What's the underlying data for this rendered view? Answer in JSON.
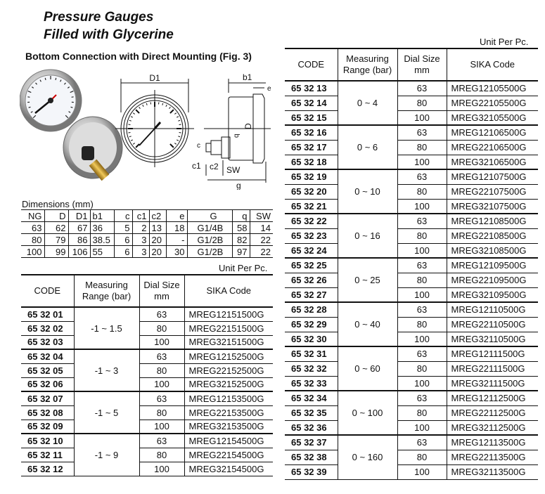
{
  "title_line1": "Pressure Gauges",
  "title_line2": "Filled with Glycerine",
  "subtitle": "Bottom Connection with Direct Mounting (Fig. 3)",
  "drawing_labels": {
    "D1": "D1",
    "b1": "b1",
    "e": "e",
    "D": "D",
    "c": "c",
    "c1": "c1",
    "c2": "c2",
    "SW": "SW",
    "g": "g",
    "q": "q"
  },
  "dimensions": {
    "label": "Dimensions (mm)",
    "headers": [
      "NG",
      "D",
      "D1",
      "b1",
      "c",
      "c1",
      "c2",
      "e",
      "G",
      "q",
      "SW"
    ],
    "rows": [
      [
        "63",
        "62",
        "67",
        "36",
        "5",
        "2",
        "13",
        "18",
        "G1/4B",
        "58",
        "14"
      ],
      [
        "80",
        "79",
        "86",
        "38.5",
        "6",
        "3",
        "20",
        "-",
        "G1/2B",
        "82",
        "22"
      ],
      [
        "100",
        "99",
        "106",
        "55",
        "6",
        "3",
        "20",
        "30",
        "G1/2B",
        "97",
        "22"
      ]
    ]
  },
  "unit_label": "Unit Per Pc.",
  "headers": {
    "code": "CODE",
    "range": "Measuring Range (bar)",
    "dial": "Dial Size mm",
    "sika": "SIKA Code"
  },
  "left_table": [
    {
      "range": "-1 ~ 1.5",
      "rows": [
        [
          "65 32 01",
          "63",
          "MREG12151500G"
        ],
        [
          "65 32 02",
          "80",
          "MREG22151500G"
        ],
        [
          "65 32 03",
          "100",
          "MREG32151500G"
        ]
      ]
    },
    {
      "range": "-1 ~ 3",
      "rows": [
        [
          "65 32 04",
          "63",
          "MREG12152500G"
        ],
        [
          "65 32 05",
          "80",
          "MREG22152500G"
        ],
        [
          "65 32 06",
          "100",
          "MREG32152500G"
        ]
      ]
    },
    {
      "range": "-1 ~ 5",
      "rows": [
        [
          "65 32 07",
          "63",
          "MREG12153500G"
        ],
        [
          "65 32 08",
          "80",
          "MREG22153500G"
        ],
        [
          "65 32 09",
          "100",
          "MREG32153500G"
        ]
      ]
    },
    {
      "range": "-1 ~ 9",
      "rows": [
        [
          "65 32 10",
          "63",
          "MREG12154500G"
        ],
        [
          "65 32 11",
          "80",
          "MREG22154500G"
        ],
        [
          "65 32 12",
          "100",
          "MREG32154500G"
        ]
      ]
    }
  ],
  "right_table": [
    {
      "range": "0 ~ 4",
      "rows": [
        [
          "65 32 13",
          "63",
          "MREG12105500G"
        ],
        [
          "65 32 14",
          "80",
          "MREG22105500G"
        ],
        [
          "65 32 15",
          "100",
          "MREG32105500G"
        ]
      ]
    },
    {
      "range": "0 ~ 6",
      "rows": [
        [
          "65 32 16",
          "63",
          "MREG12106500G"
        ],
        [
          "65 32 17",
          "80",
          "MREG22106500G"
        ],
        [
          "65 32 18",
          "100",
          "MREG32106500G"
        ]
      ]
    },
    {
      "range": "0 ~ 10",
      "rows": [
        [
          "65 32 19",
          "63",
          "MREG12107500G"
        ],
        [
          "65 32 20",
          "80",
          "MREG22107500G"
        ],
        [
          "65 32 21",
          "100",
          "MREG32107500G"
        ]
      ]
    },
    {
      "range": "0 ~ 16",
      "rows": [
        [
          "65 32 22",
          "63",
          "MREG12108500G"
        ],
        [
          "65 32 23",
          "80",
          "MREG22108500G"
        ],
        [
          "65 32 24",
          "100",
          "MREG32108500G"
        ]
      ]
    },
    {
      "range": "0 ~ 25",
      "rows": [
        [
          "65 32 25",
          "63",
          "MREG12109500G"
        ],
        [
          "65 32 26",
          "80",
          "MREG22109500G"
        ],
        [
          "65 32 27",
          "100",
          "MREG32109500G"
        ]
      ]
    },
    {
      "range": "0 ~ 40",
      "rows": [
        [
          "65 32 28",
          "63",
          "MREG12110500G"
        ],
        [
          "65 32 29",
          "80",
          "MREG22110500G"
        ],
        [
          "65 32 30",
          "100",
          "MREG32110500G"
        ]
      ]
    },
    {
      "range": "0 ~ 60",
      "rows": [
        [
          "65 32 31",
          "63",
          "MREG12111500G"
        ],
        [
          "65 32 32",
          "80",
          "MREG22111500G"
        ],
        [
          "65 32 33",
          "100",
          "MREG32111500G"
        ]
      ]
    },
    {
      "range": "0 ~ 100",
      "rows": [
        [
          "65 32 34",
          "63",
          "MREG12112500G"
        ],
        [
          "65 32 35",
          "80",
          "MREG22112500G"
        ],
        [
          "65 32 36",
          "100",
          "MREG32112500G"
        ]
      ]
    },
    {
      "range": "0 ~ 160",
      "rows": [
        [
          "65 32 37",
          "63",
          "MREG12113500G"
        ],
        [
          "65 32 38",
          "80",
          "MREG22113500G"
        ],
        [
          "65 32 39",
          "100",
          "MREG32113500G"
        ]
      ]
    }
  ]
}
